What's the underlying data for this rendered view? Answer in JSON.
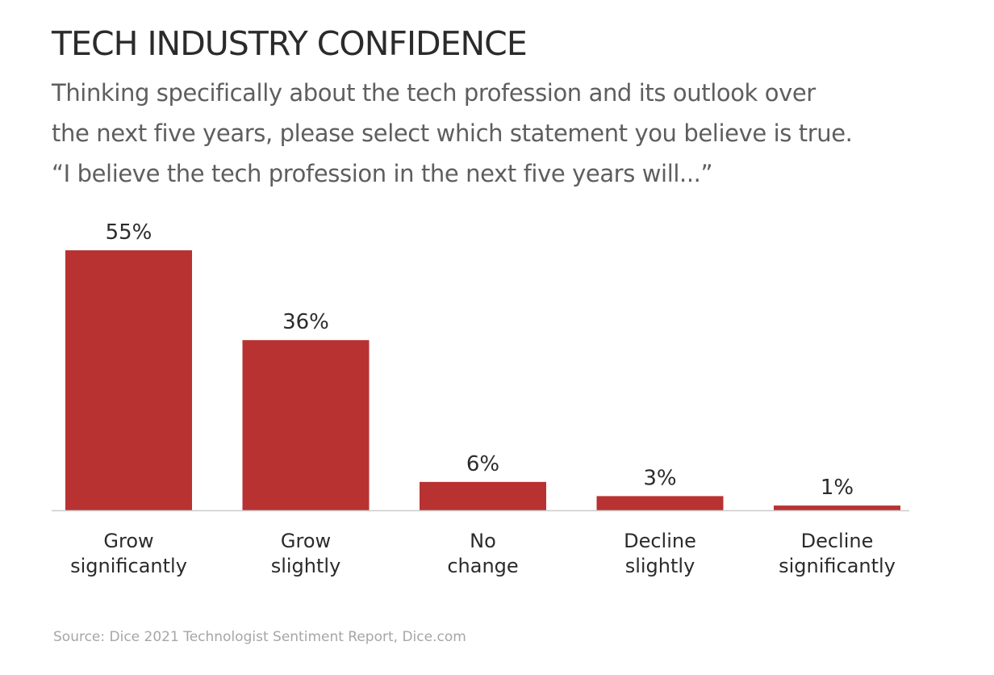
{
  "header": {
    "title": "TECH INDUSTRY CONFIDENCE",
    "subtitle_lines": [
      "Thinking specifically about the tech profession and its outlook over",
      "the next five years, please select which statement you believe is true.",
      "“I believe the tech profession in the next five years will...”"
    ]
  },
  "footer": {
    "source": "Source: Dice 2021 Technologist Sentiment Report, Dice.com"
  },
  "chart_data": {
    "type": "bar",
    "categories": [
      [
        "Grow",
        "significantly"
      ],
      [
        "Grow",
        "slightly"
      ],
      [
        "No",
        "change"
      ],
      [
        "Decline",
        "slightly"
      ],
      [
        "Decline",
        "significantly"
      ]
    ],
    "values": [
      55,
      36,
      6,
      3,
      1
    ],
    "value_labels": [
      "55%",
      "36%",
      "6%",
      "3%",
      "1%"
    ],
    "ylim": [
      0,
      55
    ],
    "grid": false,
    "legend": "none",
    "bar_color": "#b83232",
    "axis_color": "#cccccc"
  }
}
